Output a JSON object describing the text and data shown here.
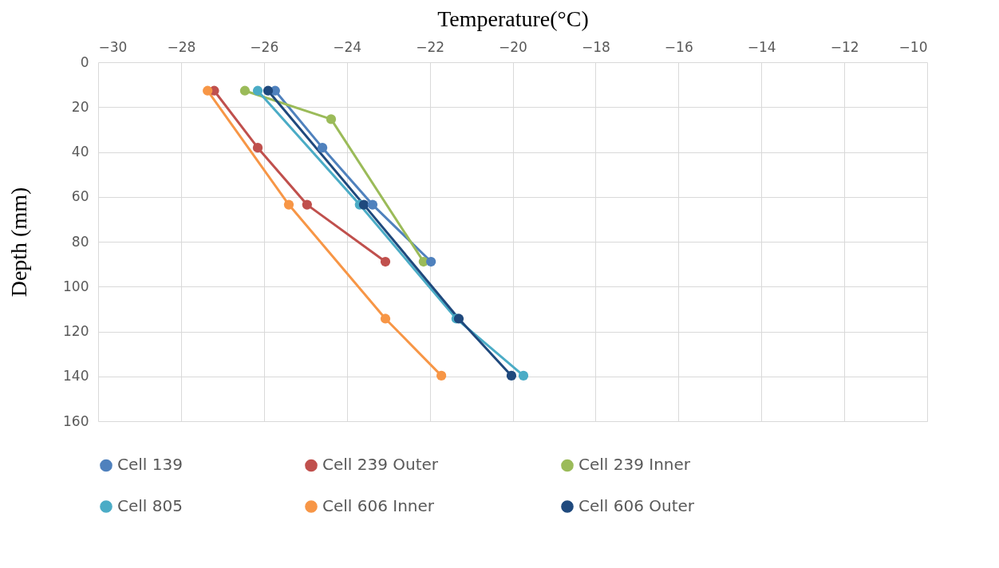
{
  "chart_data": {
    "type": "line",
    "xlabel": "Temperature(°C)",
    "ylabel": "Depth (mm)",
    "xlim": [
      -30,
      -10
    ],
    "xticks": [
      -30,
      -28,
      -26,
      -24,
      -22,
      -20,
      -18,
      -16,
      -14,
      -12,
      -10
    ],
    "ylim": [
      160,
      0
    ],
    "yticks": [
      0,
      20,
      40,
      60,
      80,
      100,
      120,
      140,
      160
    ],
    "grid": true,
    "legend": "bottom",
    "marker": "circle",
    "line_style": "solid",
    "series": [
      {
        "name": "Cell 139",
        "color": "#4f81bd",
        "x": [
          -25.73,
          -24.59,
          -23.38,
          -21.97
        ],
        "values": [
          12.7,
          38.1,
          63.5,
          88.9
        ]
      },
      {
        "name": "Cell 239 Outer",
        "color": "#c0504d",
        "x": [
          -27.2,
          -26.15,
          -24.96,
          -23.07
        ],
        "values": [
          12.7,
          38.1,
          63.5,
          88.9
        ]
      },
      {
        "name": "Cell 239 Inner",
        "color": "#9bbb59",
        "x": [
          -26.46,
          -24.38,
          -22.15
        ],
        "values": [
          12.7,
          25.4,
          88.9
        ]
      },
      {
        "name": "Cell 805",
        "color": "#4bacc6",
        "x": [
          -26.15,
          -23.69,
          -21.36,
          -19.74
        ],
        "values": [
          12.7,
          63.5,
          114.3,
          139.7
        ]
      },
      {
        "name": "Cell 606 Inner",
        "color": "#f79646",
        "x": [
          -27.36,
          -25.4,
          -23.07,
          -21.72
        ],
        "values": [
          12.7,
          63.5,
          114.3,
          139.7
        ]
      },
      {
        "name": "Cell 606  Outer",
        "color": "#1f497d",
        "x": [
          -25.9,
          -23.59,
          -21.3,
          -20.03
        ],
        "values": [
          12.7,
          63.5,
          114.3,
          139.7
        ]
      }
    ]
  }
}
